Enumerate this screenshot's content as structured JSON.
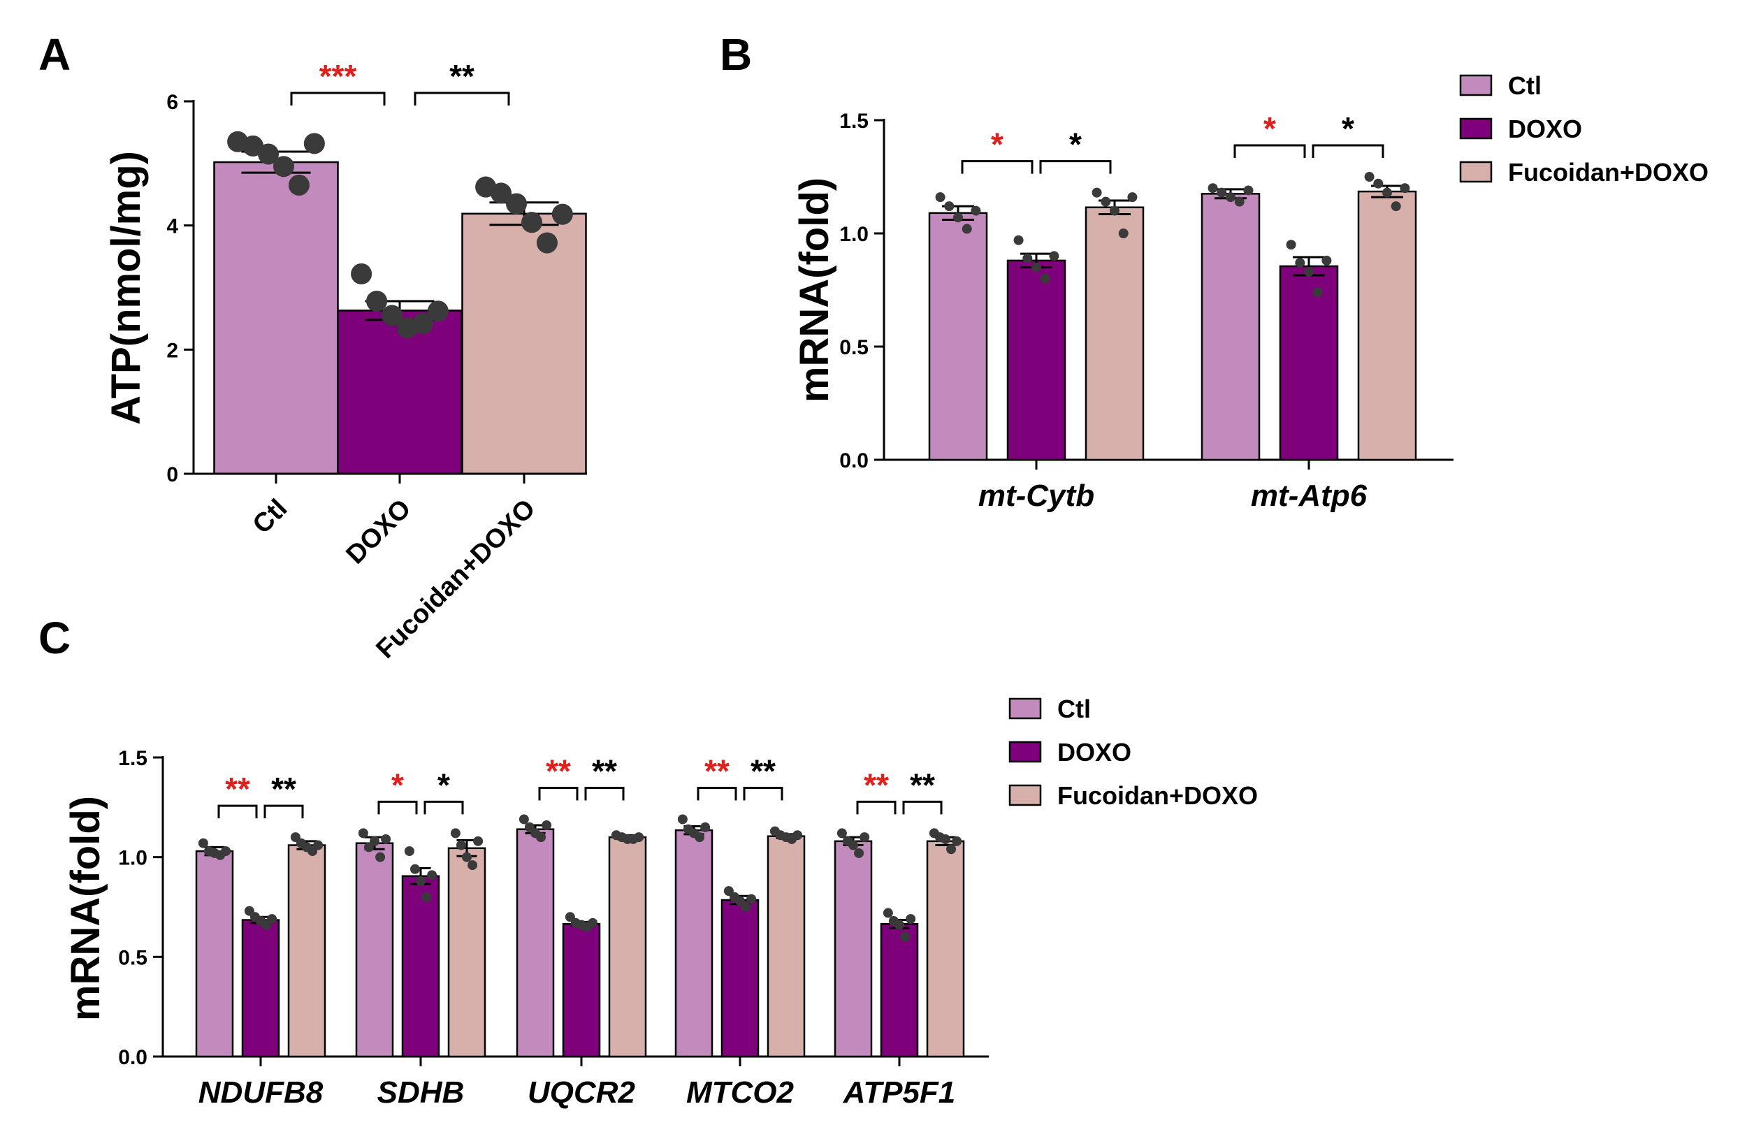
{
  "colors": {
    "ctl": "#c38bbd",
    "doxo": "#7f007b",
    "fucoidan": "#d8b0ab",
    "red_sig": "#e0201c",
    "black": "#000000",
    "dot": "#3a3a3a"
  },
  "legend": [
    "Ctl",
    "DOXO",
    "Fucoidan+DOXO"
  ],
  "chart_data": [
    {
      "panel": "A",
      "type": "bar",
      "ylabel": "ATP(nmol/mg)",
      "ylim": [
        0,
        6
      ],
      "yticks": [
        "0",
        "2",
        "4",
        "6"
      ],
      "categories": [
        "Ctl",
        "DOXO",
        "Fucoidan+DOXO"
      ],
      "values": [
        5.02,
        2.63,
        4.19
      ],
      "sem": [
        0.17,
        0.15,
        0.18
      ],
      "points": [
        [
          5.35,
          5.28,
          5.15,
          4.95,
          4.65,
          5.32
        ],
        [
          3.22,
          2.78,
          2.55,
          2.35,
          2.42,
          2.62
        ],
        [
          4.62,
          4.52,
          4.35,
          4.05,
          3.72,
          4.18
        ]
      ],
      "significance": [
        {
          "pair": [
            0,
            1
          ],
          "label": "***",
          "color": "red"
        },
        {
          "pair": [
            1,
            2
          ],
          "label": "**",
          "color": "black"
        }
      ]
    },
    {
      "panel": "B",
      "type": "bar",
      "ylabel": "mRNA(fold)",
      "ylim": [
        0,
        1.5
      ],
      "yticks": [
        "0.0",
        "0.5",
        "1.0",
        "1.5"
      ],
      "categories": [
        "mt-Cytb",
        "mt-Atp6"
      ],
      "series": [
        {
          "name": "Ctl",
          "values": [
            1.09,
            1.175
          ],
          "sem": [
            0.03,
            0.02
          ],
          "points": [
            [
              1.16,
              1.12,
              1.07,
              1.02,
              1.1
            ],
            [
              1.2,
              1.18,
              1.16,
              1.14,
              1.19
            ]
          ]
        },
        {
          "name": "DOXO",
          "values": [
            0.88,
            0.855
          ],
          "sem": [
            0.03,
            0.04
          ],
          "points": [
            [
              0.97,
              0.89,
              0.85,
              0.8,
              0.9
            ],
            [
              0.95,
              0.87,
              0.83,
              0.74,
              0.88
            ]
          ]
        },
        {
          "name": "Fucoidan+DOXO",
          "values": [
            1.115,
            1.185
          ],
          "sem": [
            0.03,
            0.025
          ],
          "points": [
            [
              1.18,
              1.14,
              1.1,
              1.0,
              1.16
            ],
            [
              1.25,
              1.22,
              1.18,
              1.12,
              1.2
            ]
          ]
        }
      ],
      "significance": [
        {
          "category": 0,
          "pair": [
            0,
            1
          ],
          "label": "*",
          "color": "red"
        },
        {
          "category": 0,
          "pair": [
            1,
            2
          ],
          "label": "*",
          "color": "black"
        },
        {
          "category": 1,
          "pair": [
            0,
            1
          ],
          "label": "*",
          "color": "red"
        },
        {
          "category": 1,
          "pair": [
            1,
            2
          ],
          "label": "*",
          "color": "black"
        }
      ]
    },
    {
      "panel": "C",
      "type": "bar",
      "ylabel": "mRNA(fold)",
      "ylim": [
        0,
        1.5
      ],
      "yticks": [
        "0.0",
        "0.5",
        "1.0",
        "1.5"
      ],
      "categories": [
        "NDUFB8",
        "SDHB",
        "UQCR2",
        "MTCO2",
        "ATP5F1"
      ],
      "series": [
        {
          "name": "Ctl",
          "values": [
            1.03,
            1.07,
            1.14,
            1.135,
            1.08
          ],
          "sem": [
            0.02,
            0.03,
            0.02,
            0.02,
            0.02
          ],
          "points": [
            [
              1.07,
              1.03,
              1.02,
              1.01,
              1.03
            ],
            [
              1.12,
              1.05,
              1.08,
              1.0,
              1.09
            ],
            [
              1.19,
              1.15,
              1.12,
              1.1,
              1.16
            ],
            [
              1.19,
              1.14,
              1.12,
              1.1,
              1.15
            ],
            [
              1.12,
              1.08,
              1.06,
              1.02,
              1.1
            ]
          ]
        },
        {
          "name": "DOXO",
          "values": [
            0.685,
            0.905,
            0.665,
            0.785,
            0.665
          ],
          "sem": [
            0.015,
            0.04,
            0.01,
            0.02,
            0.02
          ],
          "points": [
            [
              0.73,
              0.7,
              0.68,
              0.66,
              0.69
            ],
            [
              1.03,
              0.94,
              0.88,
              0.8,
              0.91
            ],
            [
              0.7,
              0.67,
              0.66,
              0.65,
              0.67
            ],
            [
              0.83,
              0.8,
              0.78,
              0.75,
              0.79
            ],
            [
              0.72,
              0.68,
              0.66,
              0.6,
              0.69
            ]
          ]
        },
        {
          "name": "Fucoidan+DOXO",
          "values": [
            1.06,
            1.045,
            1.1,
            1.105,
            1.08
          ],
          "sem": [
            0.02,
            0.04,
            0.01,
            0.01,
            0.02
          ],
          "points": [
            [
              1.1,
              1.07,
              1.05,
              1.03,
              1.06
            ],
            [
              1.12,
              1.06,
              1.0,
              0.96,
              1.08
            ],
            [
              1.11,
              1.1,
              1.09,
              1.09,
              1.1
            ],
            [
              1.13,
              1.11,
              1.1,
              1.09,
              1.11
            ],
            [
              1.12,
              1.1,
              1.09,
              1.04,
              1.08
            ]
          ]
        }
      ],
      "significance": [
        {
          "category": 0,
          "pair": [
            0,
            1
          ],
          "label": "**",
          "color": "red"
        },
        {
          "category": 0,
          "pair": [
            1,
            2
          ],
          "label": "**",
          "color": "black"
        },
        {
          "category": 1,
          "pair": [
            0,
            1
          ],
          "label": "*",
          "color": "red"
        },
        {
          "category": 1,
          "pair": [
            1,
            2
          ],
          "label": "*",
          "color": "black"
        },
        {
          "category": 2,
          "pair": [
            0,
            1
          ],
          "label": "**",
          "color": "red"
        },
        {
          "category": 2,
          "pair": [
            1,
            2
          ],
          "label": "**",
          "color": "black"
        },
        {
          "category": 3,
          "pair": [
            0,
            1
          ],
          "label": "**",
          "color": "red"
        },
        {
          "category": 3,
          "pair": [
            1,
            2
          ],
          "label": "**",
          "color": "black"
        },
        {
          "category": 4,
          "pair": [
            0,
            1
          ],
          "label": "**",
          "color": "red"
        },
        {
          "category": 4,
          "pair": [
            1,
            2
          ],
          "label": "**",
          "color": "black"
        }
      ]
    }
  ]
}
